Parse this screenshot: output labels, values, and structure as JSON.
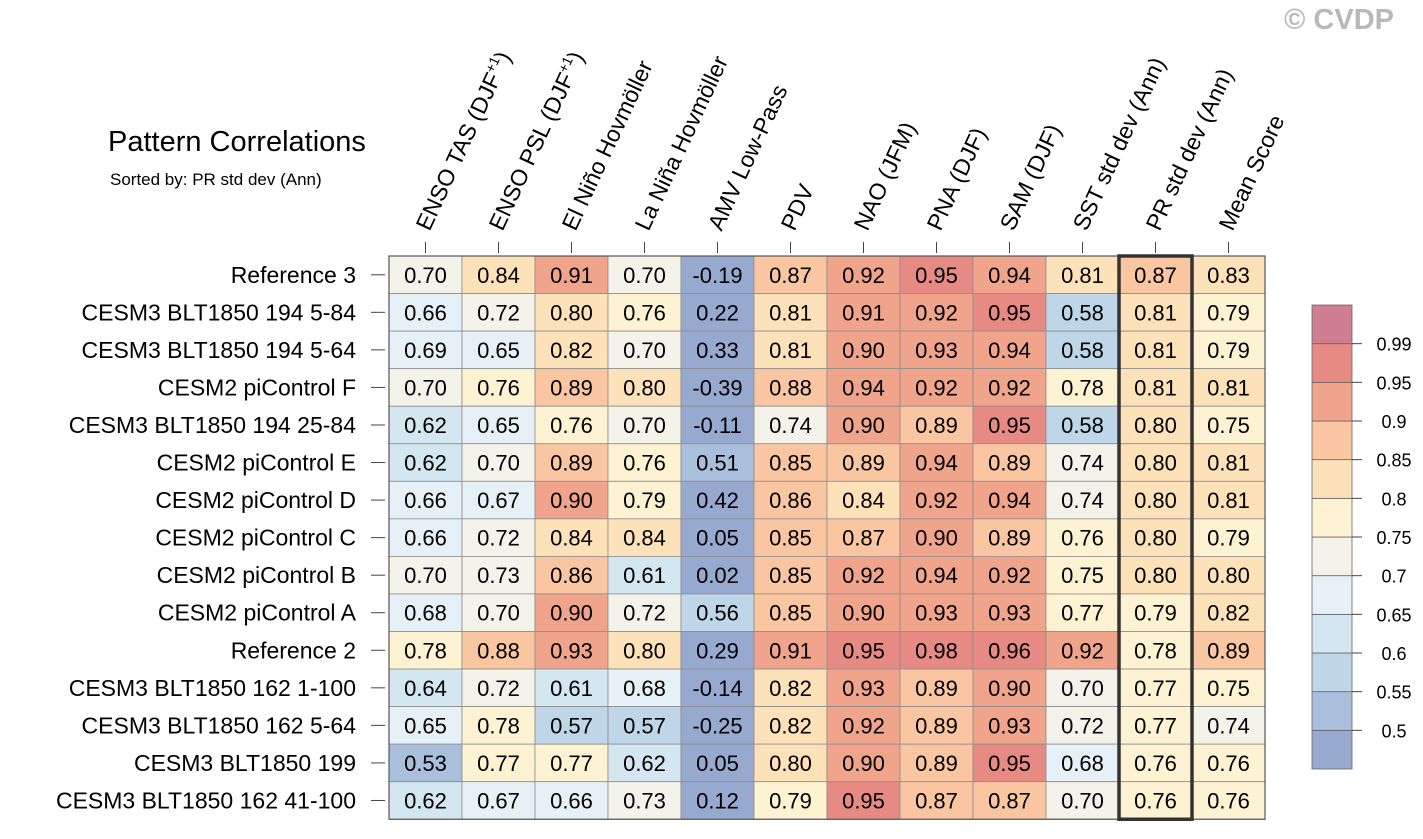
{
  "copyright": "© CVDP",
  "chart_data": {
    "type": "heatmap",
    "title": "Pattern Correlations",
    "subtitle": "Sorted by: PR std dev (Ann)",
    "columns": [
      "ENSO TAS (DJF+1)",
      "ENSO PSL (DJF+1)",
      "El Niño Hovmöller",
      "La Niña Hovmöller",
      "AMV Low-Pass",
      "PDV",
      "NAO (JFM)",
      "PNA (DJF)",
      "SAM (DJF)",
      "SST std dev (Ann)",
      "PR std dev (Ann)",
      "Mean Score"
    ],
    "column_labels": [
      {
        "main": "ENSO TAS (DJF",
        "sup": "+1",
        "tail": ")"
      },
      {
        "main": "ENSO PSL (DJF",
        "sup": "+1",
        "tail": ")"
      },
      {
        "main": "El Niño Hovmöller",
        "sup": "",
        "tail": ""
      },
      {
        "main": "La Niña Hovmöller",
        "sup": "",
        "tail": ""
      },
      {
        "main": "AMV Low-Pass",
        "sup": "",
        "tail": ""
      },
      {
        "main": "PDV",
        "sup": "",
        "tail": ""
      },
      {
        "main": "NAO (JFM)",
        "sup": "",
        "tail": ""
      },
      {
        "main": "PNA (DJF)",
        "sup": "",
        "tail": ""
      },
      {
        "main": "SAM (DJF)",
        "sup": "",
        "tail": ""
      },
      {
        "main": "SST std dev (Ann)",
        "sup": "",
        "tail": ""
      },
      {
        "main": "PR std dev (Ann)",
        "sup": "",
        "tail": ""
      },
      {
        "main": "Mean Score",
        "sup": "",
        "tail": ""
      }
    ],
    "rows": [
      "Reference 3",
      "CESM3 BLT1850 194 5-84",
      "CESM3 BLT1850 194 5-64",
      "CESM2 piControl F",
      "CESM3 BLT1850 194 25-84",
      "CESM2 piControl E",
      "CESM2 piControl D",
      "CESM2 piControl C",
      "CESM2 piControl B",
      "CESM2 piControl A",
      "Reference 2",
      "CESM3 BLT1850 162 1-100",
      "CESM3 BLT1850 162 5-64",
      "CESM3 BLT1850 199",
      "CESM3 BLT1850 162 41-100"
    ],
    "values": [
      [
        "0.70",
        "0.84",
        "0.91",
        "0.70",
        "-0.19",
        "0.87",
        "0.92",
        "0.95",
        "0.94",
        "0.81",
        "0.87",
        "0.83"
      ],
      [
        "0.66",
        "0.72",
        "0.80",
        "0.76",
        "0.22",
        "0.81",
        "0.91",
        "0.92",
        "0.95",
        "0.58",
        "0.81",
        "0.79"
      ],
      [
        "0.69",
        "0.65",
        "0.82",
        "0.70",
        "0.33",
        "0.81",
        "0.90",
        "0.93",
        "0.94",
        "0.58",
        "0.81",
        "0.79"
      ],
      [
        "0.70",
        "0.76",
        "0.89",
        "0.80",
        "-0.39",
        "0.88",
        "0.94",
        "0.92",
        "0.92",
        "0.78",
        "0.81",
        "0.81"
      ],
      [
        "0.62",
        "0.65",
        "0.76",
        "0.70",
        "-0.11",
        "0.74",
        "0.90",
        "0.89",
        "0.95",
        "0.58",
        "0.80",
        "0.75"
      ],
      [
        "0.62",
        "0.70",
        "0.89",
        "0.76",
        "0.51",
        "0.85",
        "0.89",
        "0.94",
        "0.89",
        "0.74",
        "0.80",
        "0.81"
      ],
      [
        "0.66",
        "0.67",
        "0.90",
        "0.79",
        "0.42",
        "0.86",
        "0.84",
        "0.92",
        "0.94",
        "0.74",
        "0.80",
        "0.81"
      ],
      [
        "0.66",
        "0.72",
        "0.84",
        "0.84",
        "0.05",
        "0.85",
        "0.87",
        "0.90",
        "0.89",
        "0.76",
        "0.80",
        "0.79"
      ],
      [
        "0.70",
        "0.73",
        "0.86",
        "0.61",
        "0.02",
        "0.85",
        "0.92",
        "0.94",
        "0.92",
        "0.75",
        "0.80",
        "0.80"
      ],
      [
        "0.68",
        "0.70",
        "0.90",
        "0.72",
        "0.56",
        "0.85",
        "0.90",
        "0.93",
        "0.93",
        "0.77",
        "0.79",
        "0.82"
      ],
      [
        "0.78",
        "0.88",
        "0.93",
        "0.80",
        "0.29",
        "0.91",
        "0.95",
        "0.98",
        "0.96",
        "0.92",
        "0.78",
        "0.89"
      ],
      [
        "0.64",
        "0.72",
        "0.61",
        "0.68",
        "-0.14",
        "0.82",
        "0.93",
        "0.89",
        "0.90",
        "0.70",
        "0.77",
        "0.75"
      ],
      [
        "0.65",
        "0.78",
        "0.57",
        "0.57",
        "-0.25",
        "0.82",
        "0.92",
        "0.89",
        "0.93",
        "0.72",
        "0.77",
        "0.74"
      ],
      [
        "0.53",
        "0.77",
        "0.77",
        "0.62",
        "0.05",
        "0.80",
        "0.90",
        "0.89",
        "0.95",
        "0.68",
        "0.76",
        "0.76"
      ],
      [
        "0.62",
        "0.67",
        "0.66",
        "0.73",
        "0.12",
        "0.79",
        "0.95",
        "0.87",
        "0.87",
        "0.70",
        "0.76",
        "0.76"
      ]
    ],
    "highlighted_column": "PR std dev (Ann)",
    "colorbar": {
      "levels": [
        "0.5",
        "0.55",
        "0.6",
        "0.65",
        "0.7",
        "0.75",
        "0.8",
        "0.85",
        "0.9",
        "0.95",
        "0.99"
      ],
      "colors": [
        "#98a9cf",
        "#a9bfdb",
        "#bed6e7",
        "#d4e6ef",
        "#e5f1f6",
        "#f3f3ea",
        "#fdf2d1",
        "#fde2b9",
        "#f9c6a1",
        "#f0a48c",
        "#e88a84",
        "#d07f92"
      ]
    }
  }
}
